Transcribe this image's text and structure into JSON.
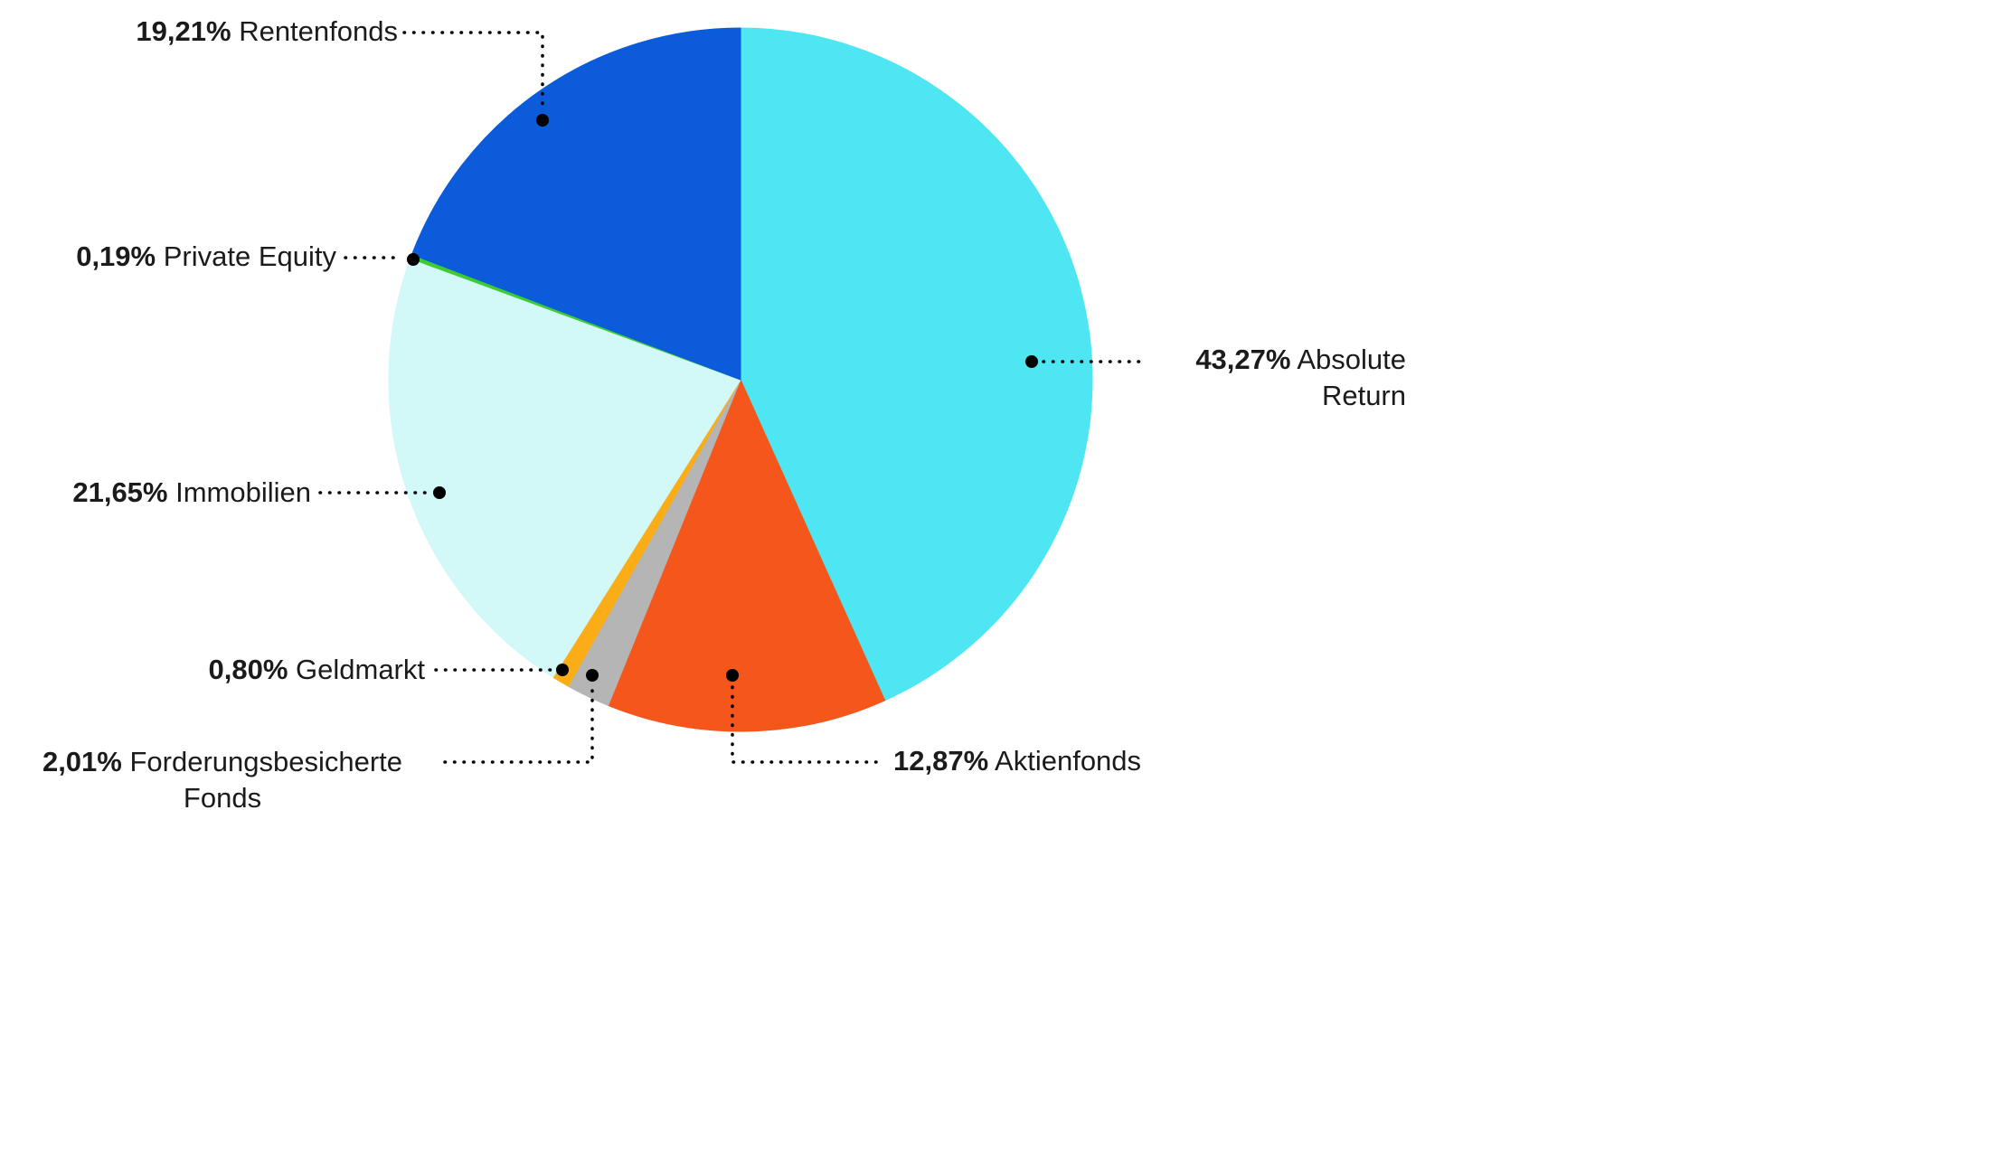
{
  "chart_data": {
    "type": "pie",
    "title": "",
    "unit": "%",
    "start_angle_deg": -90,
    "direction": "clockwise",
    "legend_position": "callout-labels",
    "background_color": "#FFFFFF",
    "text_color": "#1B1B1B",
    "leader_line_color": "#000000",
    "slices": [
      {
        "name": "Absolute Return",
        "value": 43.27,
        "label": "43,27%",
        "color": "#4DE6F2"
      },
      {
        "name": "Aktienfonds",
        "value": 12.87,
        "label": "12,87%",
        "color": "#F4561B"
      },
      {
        "name": "Forderungsbesicherte Fonds",
        "value": 2.01,
        "label": "2,01%",
        "color": "#B5B5B5"
      },
      {
        "name": "Geldmarkt",
        "value": 0.8,
        "label": "0,80%",
        "color": "#FBAD18"
      },
      {
        "name": "Immobilien",
        "value": 21.65,
        "label": "21,65%",
        "color": "#D2F8F8"
      },
      {
        "name": "Private Equity",
        "value": 0.19,
        "label": "0,19%",
        "color": "#3DCC33"
      },
      {
        "name": "Rentenfonds",
        "value": 19.21,
        "label": "19,21%",
        "color": "#0B5BDB"
      }
    ]
  }
}
